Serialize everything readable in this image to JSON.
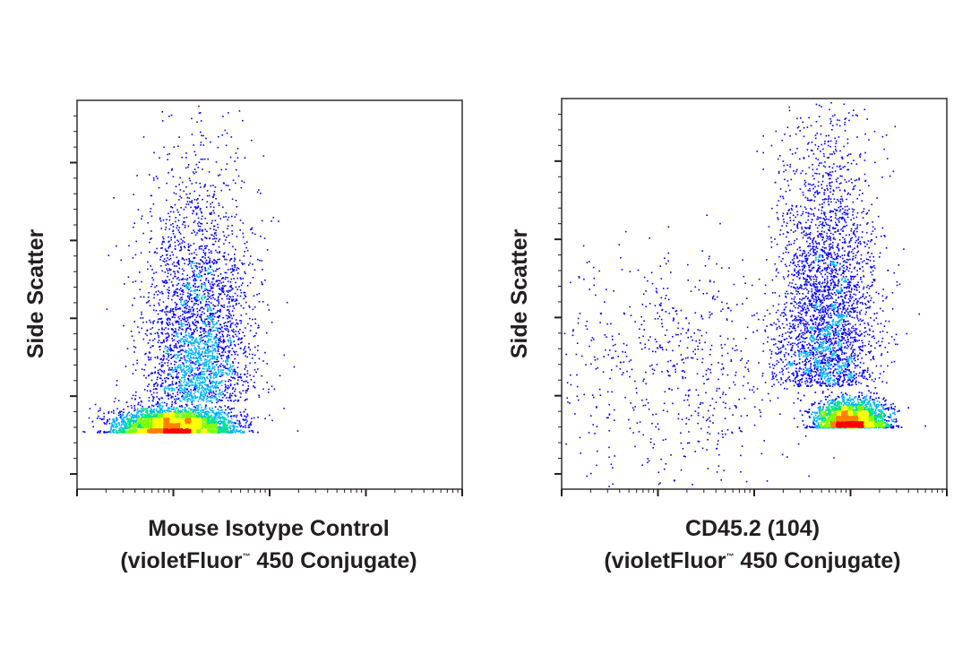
{
  "chart_data": [
    {
      "type": "scatter",
      "title": "",
      "xlabel_line1": "Mouse Isotype Control",
      "xlabel_line2": "(violetFluor",
      "xlabel_tm": "™",
      "xlabel_line2_end": " 450 Conjugate)",
      "ylabel": "Side Scatter",
      "x_scale": "log",
      "xlim": [
        10,
        100000
      ],
      "ylim": [
        0,
        1024
      ],
      "grid": false,
      "colormap": [
        "#0000ff",
        "#00b4ff",
        "#00e28a",
        "#7fff00",
        "#ffff00",
        "#ff8000",
        "#ff0000"
      ],
      "populations": [
        {
          "name": "main",
          "count": 4800,
          "x_center_log": 2.0,
          "x_sd_log": 0.3,
          "y_center": 170,
          "y_sd": 22,
          "skew_up": true
        },
        {
          "name": "tail",
          "count": 3000,
          "x_center_log": 2.25,
          "x_sd_log": 0.28,
          "y_center": 420,
          "y_sd": 170,
          "skew_up": false
        }
      ]
    },
    {
      "type": "scatter",
      "title": "",
      "xlabel_line1": "CD45.2 (104)",
      "xlabel_line2": "(violetFluor",
      "xlabel_tm": "™",
      "xlabel_line2_end": " 450 Conjugate)",
      "ylabel": "Side Scatter",
      "x_scale": "log",
      "xlim": [
        10,
        100000
      ],
      "ylim": [
        0,
        1024
      ],
      "grid": false,
      "colormap": [
        "#0000ff",
        "#00b4ff",
        "#00e28a",
        "#7fff00",
        "#ffff00",
        "#ff8000",
        "#ff0000"
      ],
      "populations": [
        {
          "name": "main",
          "count": 4600,
          "x_center_log": 4.0,
          "x_sd_log": 0.18,
          "y_center": 185,
          "y_sd": 25,
          "skew_up": true
        },
        {
          "name": "tail",
          "count": 3200,
          "x_center_log": 3.75,
          "x_sd_log": 0.25,
          "y_center": 480,
          "y_sd": 190,
          "skew_up": false
        },
        {
          "name": "background",
          "count": 700,
          "x_center_log": 2.2,
          "x_sd_log": 0.7,
          "y_center": 320,
          "y_sd": 150,
          "skew_up": false
        }
      ]
    }
  ]
}
